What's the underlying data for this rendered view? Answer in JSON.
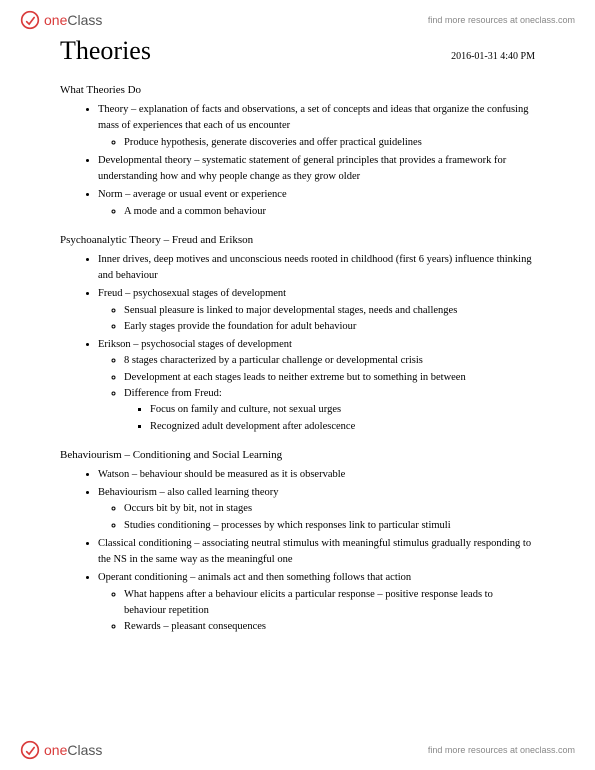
{
  "brand": {
    "one": "one",
    "class": "Class",
    "tagline": "find more resources at oneclass.com"
  },
  "page_title": "Theories",
  "datetime": "2016-01-31 4:40 PM",
  "sections": [
    {
      "heading": "What Theories Do",
      "items": [
        {
          "text": "Theory – explanation of facts and observations, a set of concepts and ideas that organize the confusing mass of experiences that each of us encounter",
          "sub": [
            {
              "text": "Produce hypothesis, generate discoveries and offer practical guidelines"
            }
          ]
        },
        {
          "text": "Developmental theory – systematic statement of general principles that provides a framework for understanding how and why people change as they grow older"
        },
        {
          "text": "Norm – average or usual event or experience",
          "sub": [
            {
              "text": "A mode and a common behaviour"
            }
          ]
        }
      ]
    },
    {
      "heading": "Psychoanalytic Theory – Freud and Erikson",
      "items": [
        {
          "text": "Inner drives, deep motives and unconscious needs rooted in childhood (first 6 years) influence thinking and behaviour"
        },
        {
          "text": "Freud – psychosexual stages of development",
          "sub": [
            {
              "text": "Sensual pleasure is linked to major developmental stages, needs and challenges"
            },
            {
              "text": "Early stages provide the foundation for adult behaviour"
            }
          ]
        },
        {
          "text": "Erikson – psychosocial stages of development",
          "sub": [
            {
              "text": "8 stages characterized by a particular challenge or developmental crisis"
            },
            {
              "text": "Development at each stages leads to neither extreme but to something in between"
            },
            {
              "text": "Difference from Freud:",
              "sub": [
                {
                  "text": "Focus on family and culture, not sexual urges"
                },
                {
                  "text": "Recognized adult development after adolescence"
                }
              ]
            }
          ]
        }
      ]
    },
    {
      "heading": "Behaviourism – Conditioning and Social Learning",
      "items": [
        {
          "text": "Watson – behaviour should be measured as it is observable"
        },
        {
          "text": "Behaviourism – also called learning theory",
          "sub": [
            {
              "text": "Occurs bit by bit, not in stages"
            },
            {
              "text": "Studies conditioning – processes by which responses link to particular stimuli"
            }
          ]
        },
        {
          "text": "Classical conditioning – associating neutral stimulus with meaningful stimulus gradually responding to the NS in the same way as the meaningful one"
        },
        {
          "text": "Operant conditioning – animals act and then something follows that action",
          "sub": [
            {
              "text": "What happens after a behaviour elicits a particular response – positive response leads to behaviour repetition"
            },
            {
              "text": "Rewards – pleasant consequences"
            }
          ]
        }
      ]
    }
  ]
}
